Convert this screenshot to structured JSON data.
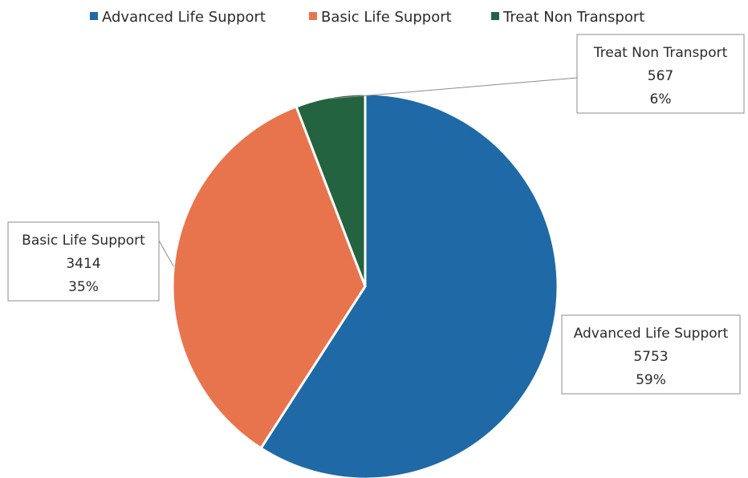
{
  "chart_data": {
    "type": "pie",
    "title": "",
    "legend_position": "top",
    "categories": [
      "Advanced Life Support",
      "Basic Life Support",
      "Treat Non Transport"
    ],
    "values": [
      5753,
      3414,
      567
    ],
    "percent_labels": [
      "59%",
      "35%",
      "6%"
    ],
    "colors": [
      "#1f6aa6",
      "#e8744e",
      "#23633f"
    ]
  }
}
